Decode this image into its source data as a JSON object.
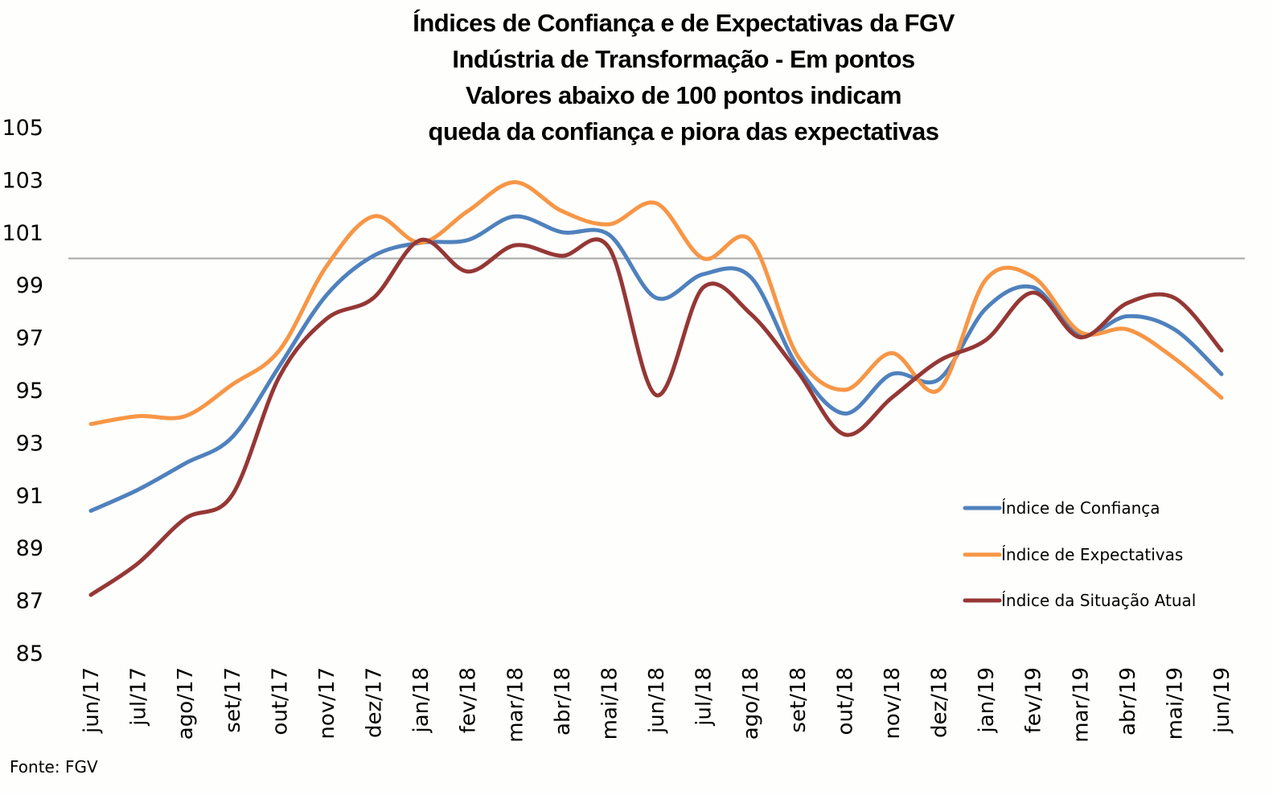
{
  "chart_data": {
    "type": "line",
    "title": [
      "Índices de Confiança e de Expectativas da FGV",
      "Indústria de Transformação - Em pontos",
      "Valores abaixo de 100 pontos indicam",
      "queda da confiança e piora das expectativas"
    ],
    "xlabel": "",
    "ylabel": "",
    "ylim": [
      85,
      105
    ],
    "yticks": [
      85,
      87,
      89,
      91,
      93,
      95,
      97,
      99,
      101,
      103,
      105
    ],
    "grid": false,
    "reference_line": 100,
    "smooth": true,
    "legend_position": "right",
    "categories": [
      "jun/17",
      "jul/17",
      "ago/17",
      "set/17",
      "out/17",
      "nov/17",
      "dez/17",
      "jan/18",
      "fev/18",
      "mar/18",
      "abr/18",
      "mai/18",
      "jun/18",
      "jul/18",
      "ago/18",
      "set/18",
      "out/18",
      "nov/18",
      "dez/18",
      "jan/19",
      "fev/19",
      "mar/19",
      "abr/19",
      "mai/19",
      "jun/19"
    ],
    "series": [
      {
        "name": "Índice de Confiança",
        "color": "#4f81bd",
        "values": [
          90.4,
          91.2,
          92.2,
          93.2,
          95.9,
          98.6,
          100.1,
          100.6,
          100.7,
          101.6,
          101.0,
          100.9,
          98.5,
          99.4,
          99.3,
          95.9,
          94.1,
          95.6,
          95.4,
          98.1,
          98.9,
          97.1,
          97.8,
          97.3,
          95.6
        ]
      },
      {
        "name": "Índice de Expectativas",
        "color": "#f79646",
        "values": [
          93.7,
          94.0,
          94.0,
          95.2,
          96.5,
          99.7,
          101.6,
          100.6,
          101.8,
          102.9,
          101.8,
          101.3,
          102.1,
          100.0,
          100.7,
          96.3,
          95.0,
          96.4,
          95.0,
          99.2,
          99.3,
          97.2,
          97.3,
          96.2,
          94.7
        ]
      },
      {
        "name": "Índice da Situação Atual",
        "color": "#953735",
        "values": [
          87.2,
          88.4,
          90.1,
          91.0,
          95.5,
          97.7,
          98.5,
          100.7,
          99.5,
          100.5,
          100.1,
          100.4,
          94.8,
          98.9,
          97.9,
          95.7,
          93.3,
          94.7,
          96.1,
          96.9,
          98.7,
          97.0,
          98.3,
          98.5,
          96.5
        ]
      }
    ]
  },
  "source_note": "Fonte: FGV"
}
